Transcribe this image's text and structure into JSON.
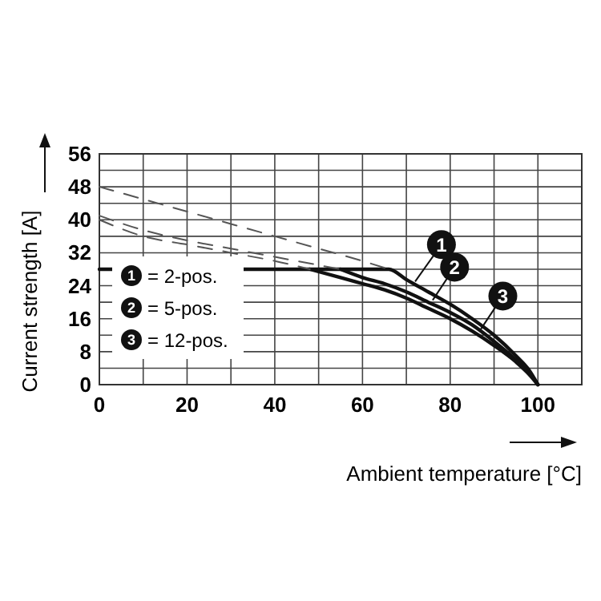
{
  "chart_data": {
    "type": "line",
    "xlabel": "Ambient temperature [°C]",
    "ylabel": "Current strength [A]",
    "xlim": [
      0,
      110
    ],
    "ylim": [
      0,
      56
    ],
    "xticks": [
      0,
      {
        "value": 10,
        "label": null
      },
      20,
      {
        "value": 30,
        "label": null
      },
      40,
      {
        "value": 50,
        "label": null
      },
      60,
      {
        "value": 70,
        "label": null
      },
      80,
      {
        "value": 90,
        "label": null
      },
      100,
      {
        "value": 110,
        "label": null
      }
    ],
    "yticks": [
      0,
      {
        "value": 4,
        "label": null
      },
      8,
      {
        "value": 12,
        "label": null
      },
      16,
      {
        "value": 20,
        "label": null
      },
      24,
      {
        "value": 28,
        "label": null
      },
      32,
      {
        "value": 36,
        "label": null
      },
      40,
      {
        "value": 44,
        "label": null
      },
      48,
      {
        "value": 52,
        "label": null
      },
      56
    ],
    "grid": true,
    "marker": "none",
    "series": [
      {
        "color": "#111111",
        "x": [
          0,
          66,
          70,
          75,
          80,
          85,
          90,
          95,
          98,
          100
        ],
        "values": [
          28,
          28,
          25.5,
          22.5,
          19.5,
          16,
          12,
          7,
          3.5,
          0
        ]
      },
      {
        "color": "#111111",
        "x": [
          55,
          60,
          65,
          70,
          75,
          80,
          85,
          90,
          95,
          98,
          100
        ],
        "values": [
          28,
          26,
          24.5,
          22.5,
          20,
          17.5,
          14.5,
          10.5,
          6,
          3,
          0
        ]
      },
      {
        "color": "#111111",
        "x": [
          48,
          55,
          60,
          65,
          70,
          75,
          80,
          85,
          90,
          95,
          98,
          100
        ],
        "values": [
          28,
          26,
          24.5,
          23,
          21,
          18.5,
          16,
          13,
          9.5,
          5.5,
          2.5,
          0
        ]
      },
      {
        "color": "#555555",
        "line_style": "dashed",
        "x": [
          0,
          10,
          20,
          30,
          40,
          50,
          60,
          66
        ],
        "values": [
          48,
          45,
          42,
          39,
          36,
          33,
          30,
          28
        ]
      },
      {
        "color": "#555555",
        "line_style": "dashed",
        "x": [
          0,
          10,
          20,
          30,
          40,
          50,
          55
        ],
        "values": [
          41,
          37.5,
          35,
          33,
          31,
          29,
          28
        ]
      },
      {
        "color": "#555555",
        "line_style": "dashed",
        "x": [
          0,
          10,
          20,
          30,
          40,
          48
        ],
        "values": [
          40,
          36,
          34,
          32,
          30,
          28
        ]
      }
    ],
    "annotations": [
      {
        "text": "1",
        "x": 72,
        "y": 25
      },
      {
        "text": "2",
        "x": 76,
        "y": 20.5
      },
      {
        "text": "3",
        "x": 87,
        "y": 13.5
      },
      "= 2-pos.",
      "= 5-pos.",
      "= 12-pos."
    ]
  }
}
